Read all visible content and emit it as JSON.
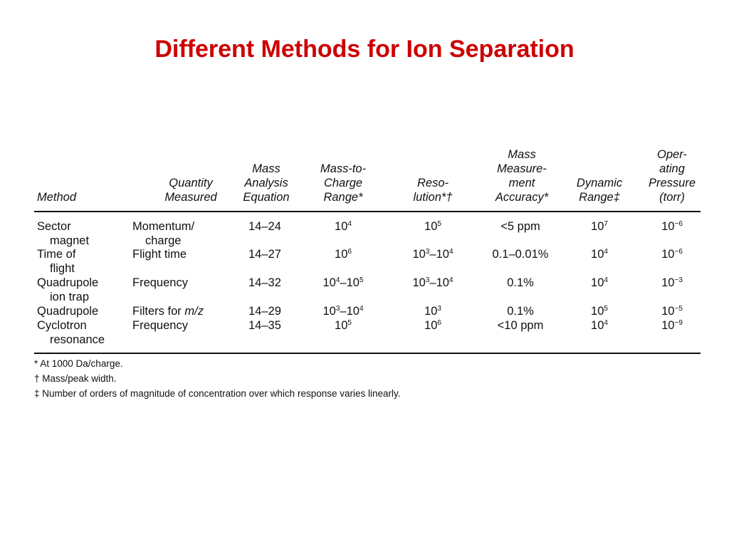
{
  "title": "Different Methods for Ion Separation",
  "table": {
    "headers": {
      "method": "Method",
      "quantity": "Quantity\nMeasured",
      "equation": "Mass\nAnalysis\nEquation",
      "range": "Mass-to-\nCharge\nRange*",
      "resolution": "Reso-\nlution*†",
      "accuracy": "Mass\nMeasure-\nment\nAccuracy*",
      "dynamic": "Dynamic\nRange‡",
      "pressure": "Oper-\nating\nPressure\n(torr)"
    },
    "rows": [
      {
        "method_l1": "Sector",
        "method_l2": "magnet",
        "quantity_l1": "Momentum/",
        "quantity_l2": "charge",
        "equation": "14–24",
        "range_base": "10",
        "range_exp": "4",
        "res_base": "10",
        "res_exp": "5",
        "accuracy": "<5 ppm",
        "dyn_base": "10",
        "dyn_exp": "7",
        "pres_base": "10",
        "pres_exp": "−6"
      },
      {
        "method_l1": "Time of",
        "method_l2": "flight",
        "quantity_l1": "Flight time",
        "quantity_l2": "",
        "equation": "14–27",
        "range_base": "10",
        "range_exp": "6",
        "res_a": "10",
        "res_a_exp": "3",
        "res_sep": "–",
        "res_b": "10",
        "res_b_exp": "4",
        "accuracy": "0.1–0.01%",
        "dyn_base": "10",
        "dyn_exp": "4",
        "pres_base": "10",
        "pres_exp": "−6"
      },
      {
        "method_l1": "Quadrupole",
        "method_l2": "ion trap",
        "quantity_l1": "Frequency",
        "quantity_l2": "",
        "equation": "14–32",
        "range_a": "10",
        "range_a_exp": "4",
        "range_sep": "–",
        "range_b": "10",
        "range_b_exp": "5",
        "res_a": "10",
        "res_a_exp": "3",
        "res_sep": "–",
        "res_b": "10",
        "res_b_exp": "4",
        "accuracy": "0.1%",
        "dyn_base": "10",
        "dyn_exp": "4",
        "pres_base": "10",
        "pres_exp": "−3"
      },
      {
        "method_l1": "Quadrupole",
        "method_l2": "",
        "quantity_l1": "Filters for",
        "quantity_italic": "m/z",
        "quantity_l2": "",
        "equation": "14–29",
        "range_a": "10",
        "range_a_exp": "3",
        "range_sep": "–",
        "range_b": "10",
        "range_b_exp": "4",
        "res_base": "10",
        "res_exp": "3",
        "accuracy": "0.1%",
        "dyn_base": "10",
        "dyn_exp": "5",
        "pres_base": "10",
        "pres_exp": "−5"
      },
      {
        "method_l1": "Cyclotron",
        "method_l2": "resonance",
        "quantity_l1": "Frequency",
        "quantity_l2": "",
        "equation": "14–35",
        "range_base": "10",
        "range_exp": "5",
        "res_base": "10",
        "res_exp": "6",
        "accuracy": "<10 ppm",
        "dyn_base": "10",
        "dyn_exp": "4",
        "pres_base": "10",
        "pres_exp": "−9"
      }
    ]
  },
  "footnotes": [
    "* At 1000 Da/charge.",
    "† Mass/peak width.",
    "‡ Number of orders of magnitude of concentration over which response varies linearly."
  ]
}
